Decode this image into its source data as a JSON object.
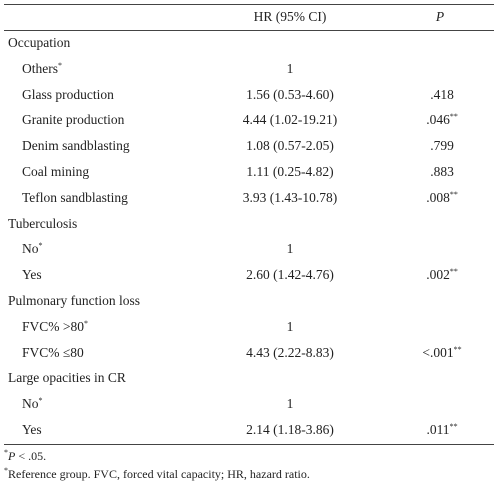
{
  "header": {
    "columns": [
      "HR (95% CI)",
      "P"
    ]
  },
  "sections": [
    {
      "label": "Occupation",
      "rows": [
        {
          "label": "Others",
          "sup": "*",
          "hr": "1"
        },
        {
          "label": "Glass production",
          "hr": "1.56 (0.53-4.60)",
          "p": ".418"
        },
        {
          "label": "Granite production",
          "hr": "4.44 (1.02-19.21)",
          "p": ".046",
          "p_sup": "**"
        },
        {
          "label": "Denim sandblasting",
          "hr": "1.08 (0.57-2.05)",
          "p": ".799"
        },
        {
          "label": "Coal mining",
          "hr": "1.11 (0.25-4.82)",
          "p": ".883"
        },
        {
          "label": "Teflon sandblasting",
          "hr": "3.93 (1.43-10.78)",
          "p": ".008",
          "p_sup": "**"
        }
      ]
    },
    {
      "label": "Tuberculosis",
      "rows": [
        {
          "label": "No",
          "sup": "*",
          "hr": "1"
        },
        {
          "label": "Yes",
          "hr": "2.60 (1.42-4.76)",
          "p": ".002",
          "p_sup": "**"
        }
      ]
    },
    {
      "label": "Pulmonary function loss",
      "rows": [
        {
          "label": "FVC% >80",
          "sup": "*",
          "hr": "1"
        },
        {
          "label": "FVC% ≤80",
          "hr": "4.43 (2.22-8.83)",
          "p": "<.001",
          "p_sup": "**"
        }
      ]
    },
    {
      "label": "Large opacities in CR",
      "rows": [
        {
          "label": "No",
          "sup": "*",
          "hr": "1"
        },
        {
          "label": "Yes",
          "hr": "2.14 (1.18-3.86)",
          "p": ".011",
          "p_sup": "**"
        }
      ]
    }
  ],
  "footnotes": [
    {
      "sup": "*",
      "italic": "P",
      "text": " < .05."
    },
    {
      "sup": "*",
      "text": "Reference group. FVC, forced vital capacity; HR, hazard ratio."
    }
  ]
}
